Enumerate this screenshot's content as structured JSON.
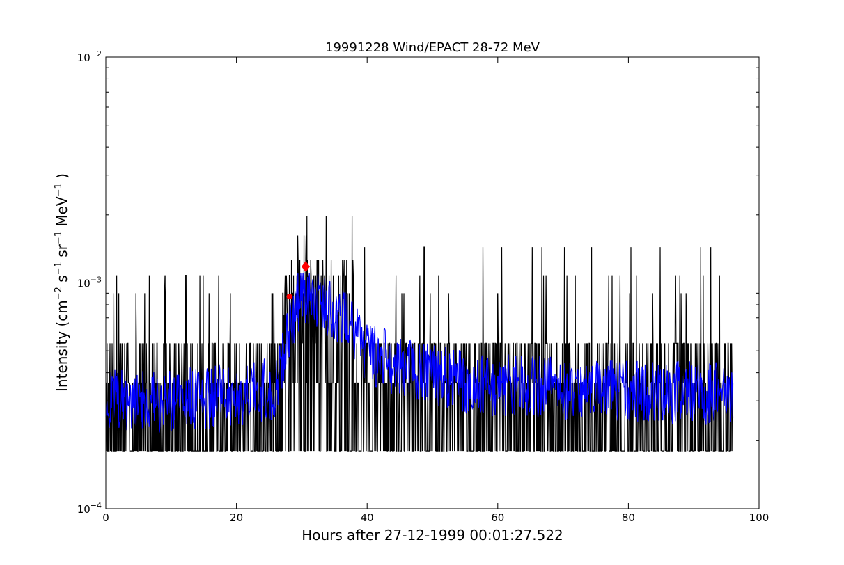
{
  "chart_data": {
    "type": "line",
    "title": "19991228 Wind/EPACT 28-72 MeV",
    "xlabel": "Hours after 27-12-1999 00:01:27.522",
    "ylabel": {
      "text": "Intensity (cm",
      "exp1": "−2",
      "mid1": " s",
      "exp2": "−1",
      "mid2": " sr",
      "exp3": "−1",
      "mid3": " MeV",
      "exp4": "−1",
      "end": " )"
    },
    "xlim": [
      0,
      100
    ],
    "ylim": [
      0.0001,
      0.01
    ],
    "yscale": "log",
    "grid": false,
    "x_ticks": [
      0,
      20,
      40,
      60,
      80,
      100
    ],
    "x_tick_labels": [
      "0",
      "20",
      "40",
      "60",
      "80",
      "100"
    ],
    "y_ticks": [
      {
        "value": 0.0001,
        "base": "10",
        "exp": "−4"
      },
      {
        "value": 0.001,
        "base": "10",
        "exp": "−3"
      },
      {
        "value": 0.01,
        "base": "10",
        "exp": "−2"
      }
    ],
    "series": [
      {
        "role": "raw intensity",
        "color": "#000000",
        "x_start": 0,
        "x_end": 96,
        "levels": [
          0.00018,
          0.00036,
          0.00054,
          0.00072,
          0.0009,
          0.00108,
          0.00126,
          0.00144,
          0.00162,
          0.0018,
          0.00198
        ],
        "segments": [
          {
            "x_from": 0,
            "x_to": 27,
            "range": [
              0.00018,
              0.00054
            ],
            "spikes": [
              0.0009,
              0.00108
            ]
          },
          {
            "x_from": 27,
            "x_to": 38,
            "range": [
              0.00018,
              0.00126
            ],
            "spikes": [
              0.00162,
              0.00198
            ]
          },
          {
            "x_from": 38,
            "x_to": 96,
            "range": [
              0.00018,
              0.00054
            ],
            "spikes": [
              0.0009,
              0.00108,
              0.00144
            ]
          }
        ]
      },
      {
        "role": "smoothed intensity",
        "color": "#0000ff",
        "x_start": 0,
        "x_end": 96,
        "profile": [
          {
            "x": 0,
            "y": 0.0003
          },
          {
            "x": 10,
            "y": 0.0003
          },
          {
            "x": 20,
            "y": 0.00032
          },
          {
            "x": 26,
            "y": 0.00034
          },
          {
            "x": 28,
            "y": 0.0006
          },
          {
            "x": 30,
            "y": 0.0009
          },
          {
            "x": 33,
            "y": 0.0008
          },
          {
            "x": 36,
            "y": 0.0007
          },
          {
            "x": 40,
            "y": 0.0005
          },
          {
            "x": 45,
            "y": 0.00042
          },
          {
            "x": 55,
            "y": 0.00036
          },
          {
            "x": 70,
            "y": 0.00034
          },
          {
            "x": 96,
            "y": 0.00032
          }
        ]
      }
    ],
    "markers": [
      {
        "x": 28.1,
        "y": 0.00087,
        "color": "#ff0000",
        "shape": "circle"
      },
      {
        "x": 30.6,
        "y": 0.00118,
        "color": "#ff0000",
        "shape": "diamond"
      }
    ]
  }
}
